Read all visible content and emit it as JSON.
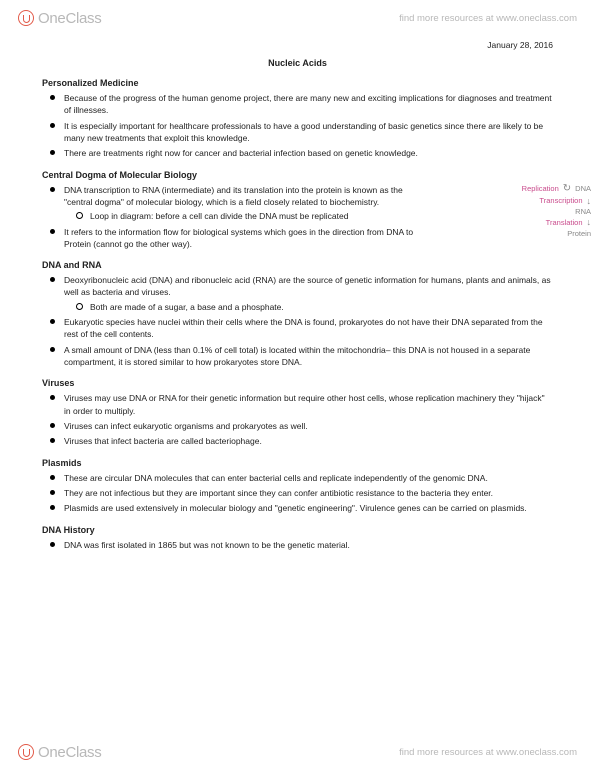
{
  "brand": {
    "name": "OneClass",
    "tagline": "find more resources at www.oneclass.com"
  },
  "date": "January 28, 2016",
  "title": "Nucleic Acids",
  "sections": [
    {
      "head": "Personalized Medicine",
      "items": [
        {
          "text": "Because of the progress of the human genome project, there are many new and exciting implications for diagnoses and treatment of illnesses."
        },
        {
          "text": "It is especially important for healthcare professionals to have a good understanding of basic genetics since there are likely to be many new treatments that exploit this knowledge."
        },
        {
          "text": "There are treatments right now for cancer and bacterial infection based on genetic knowledge."
        }
      ]
    },
    {
      "head": "Central Dogma of Molecular Biology",
      "diagram": {
        "replication": "Replication",
        "dna": "DNA",
        "transcription": "Transcription",
        "rna": "RNA",
        "translation": "Translation",
        "protein": "Protein"
      },
      "items": [
        {
          "text": "DNA transcription to RNA (intermediate) and its translation into the protein is known as the \"central dogma\" of molecular biology, which is a field closely related to biochemistry.",
          "sub": [
            "Loop in diagram: before a cell can divide the DNA must be replicated"
          ]
        },
        {
          "text": "It refers to the information flow for biological systems which goes in the direction from DNA to Protein (cannot go the other way)."
        }
      ]
    },
    {
      "head": "DNA and RNA",
      "items": [
        {
          "text": "Deoxyribonucleic acid (DNA) and ribonucleic acid (RNA) are the source of genetic information for humans, plants and animals, as well as bacteria and viruses.",
          "sub": [
            "Both are made of a sugar, a base and a phosphate."
          ]
        },
        {
          "text": "Eukaryotic species have nuclei within their cells where the DNA is found, prokaryotes do not have their DNA separated from the rest of the cell contents."
        },
        {
          "text": "A small amount of DNA (less than 0.1% of cell total) is located within the mitochondria– this DNA is not housed in a separate compartment, it is stored similar to how prokaryotes store DNA."
        }
      ]
    },
    {
      "head": "Viruses",
      "items": [
        {
          "text": "Viruses may use DNA or RNA for their genetic information but require other host cells, whose replication machinery they \"hijack\" in order to multiply."
        },
        {
          "text": "Viruses can infect eukaryotic organisms and prokaryotes as well."
        },
        {
          "text": "Viruses that infect bacteria are called bacteriophage."
        }
      ]
    },
    {
      "head": "Plasmids",
      "items": [
        {
          "text": "These are circular DNA molecules that can enter bacterial cells and replicate independently of the genomic DNA."
        },
        {
          "text": "They are not infectious but they are important since they can confer antibiotic resistance to the bacteria they enter."
        },
        {
          "text": "Plasmids are used extensively in molecular biology and \"genetic engineering\". Virulence genes can be carried on plasmids."
        }
      ]
    },
    {
      "head": "DNA History",
      "items": [
        {
          "text": "DNA was first isolated in 1865 but was not known to be the genetic material."
        }
      ]
    }
  ]
}
